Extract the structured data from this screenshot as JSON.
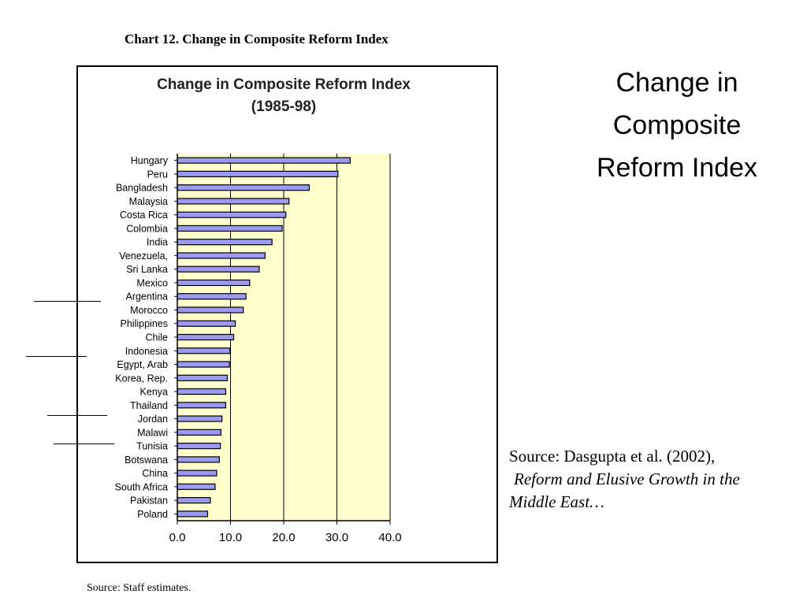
{
  "slide": {
    "caption": "Chart 12.  Change in Composite Reform Index",
    "title_lines": [
      "Change in",
      "Composite",
      "Reform Index"
    ],
    "source_line1": "Source: Dasgupta et al. (2002),",
    "source_line2": "Reform and Elusive Growth in the",
    "source_line3": "Middle East…",
    "footnote": "Source: Staff estimates."
  },
  "chart_data": {
    "type": "bar",
    "orientation": "horizontal",
    "title": "Change in Composite Reform Index",
    "subtitle": "(1985-98)",
    "xlabel": "",
    "ylabel": "",
    "xlim": [
      0,
      40
    ],
    "xticks": [
      "0.0",
      "10.0",
      "20.0",
      "30.0",
      "40.0"
    ],
    "grid": "vertical",
    "categories": [
      "Hungary",
      "Peru",
      "Bangladesh",
      "Malaysia",
      "Costa Rica",
      "Colombia",
      "India",
      "Venezuela,",
      "Sri Lanka",
      "Mexico",
      "Argentina",
      "Morocco",
      "Philippines",
      "Chile",
      "Indonesia",
      "Egypt, Arab",
      "Korea, Rep.",
      "Kenya",
      "Thailand",
      "Jordan",
      "Malawi",
      "Tunisia",
      "Botswana",
      "China",
      "South Africa",
      "Pakistan",
      "Poland"
    ],
    "values": [
      32.5,
      30.2,
      24.8,
      21.0,
      20.4,
      19.7,
      17.8,
      16.5,
      15.4,
      13.6,
      12.9,
      12.4,
      10.9,
      10.6,
      9.9,
      9.8,
      9.4,
      9.1,
      9.1,
      8.4,
      8.2,
      8.1,
      7.9,
      7.4,
      7.1,
      6.2,
      5.7
    ],
    "colors": {
      "bar": "#9a9af0",
      "plot_bg": "#ffffcc",
      "bar_edge": "#000000"
    }
  }
}
